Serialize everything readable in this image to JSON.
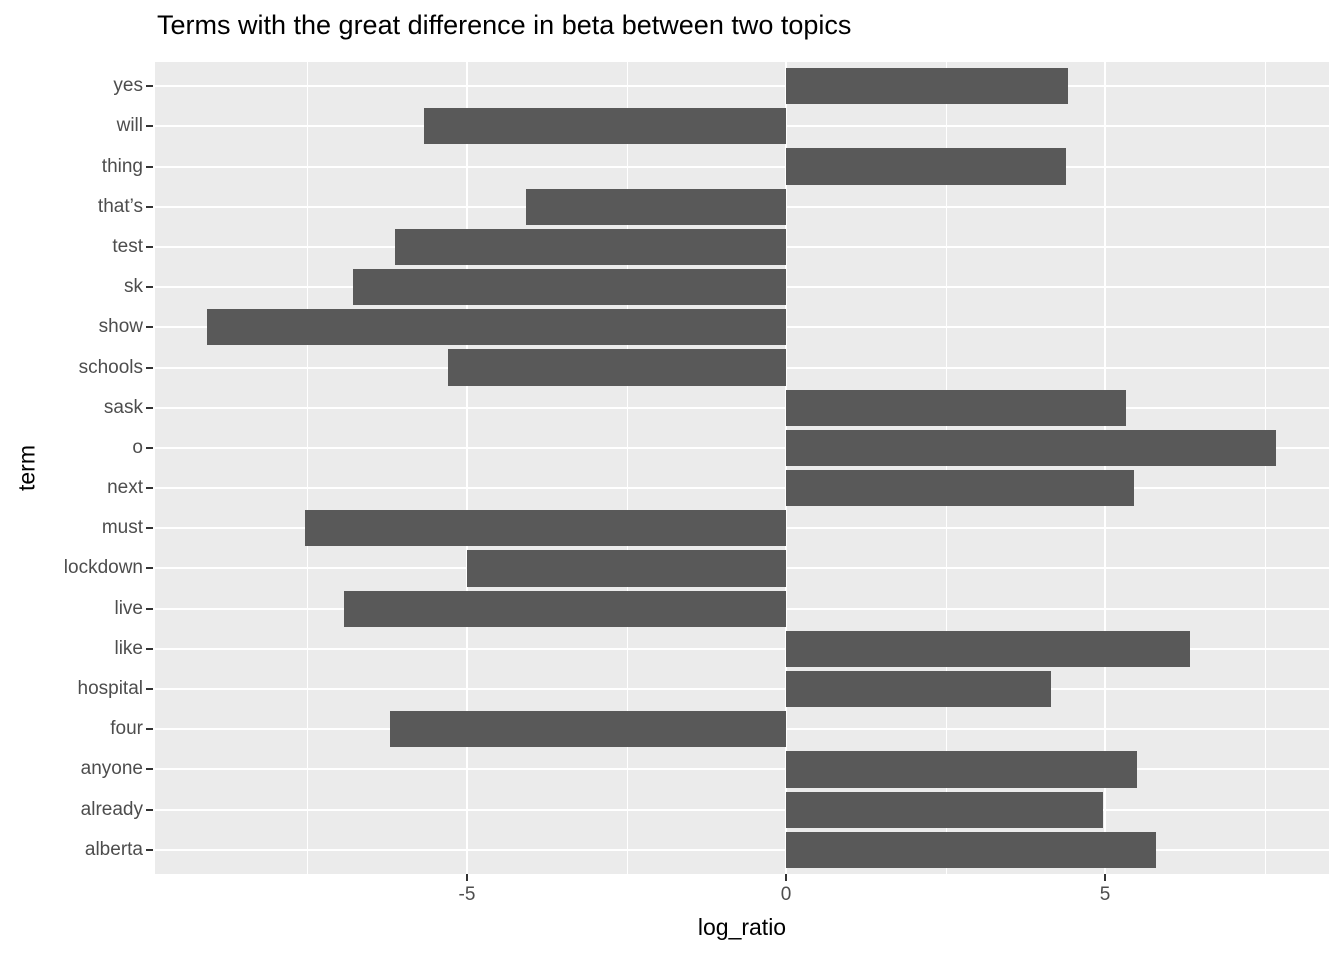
{
  "title": "Terms with the great difference in beta between two topics",
  "chart_data": {
    "type": "bar",
    "orientation": "horizontal",
    "title": "Terms with the great difference in beta between two topics",
    "xlabel": "log_ratio",
    "ylabel": "term",
    "categories": [
      "yes",
      "will",
      "thing",
      "that’s",
      "test",
      "sk",
      "show",
      "schools",
      "sask",
      "o",
      "next",
      "must",
      "lockdown",
      "live",
      "like",
      "hospital",
      "four",
      "anyone",
      "already",
      "alberta"
    ],
    "values": [
      4.42,
      -5.67,
      4.39,
      -4.08,
      -6.13,
      -6.79,
      -9.08,
      -5.3,
      5.33,
      7.68,
      5.45,
      -7.54,
      -5.0,
      -6.93,
      6.33,
      4.15,
      -6.21,
      5.5,
      4.97,
      5.8
    ],
    "xlim": [
      -9.89,
      8.51
    ],
    "x_major_ticks": [
      -5,
      0,
      5
    ],
    "x_major_tick_labels": [
      "-5",
      "0",
      "5"
    ],
    "x_minor_ticks": [
      -7.5,
      -2.5,
      2.5,
      7.5
    ],
    "grid": true,
    "legend": "none",
    "bar_color": "#595959",
    "panel_background": "#EBEBEB",
    "grid_color": "#FFFFFF",
    "tick_label_color": "#4D4D4D",
    "tick_mark_color": "#333333",
    "title_color": "#000000"
  }
}
